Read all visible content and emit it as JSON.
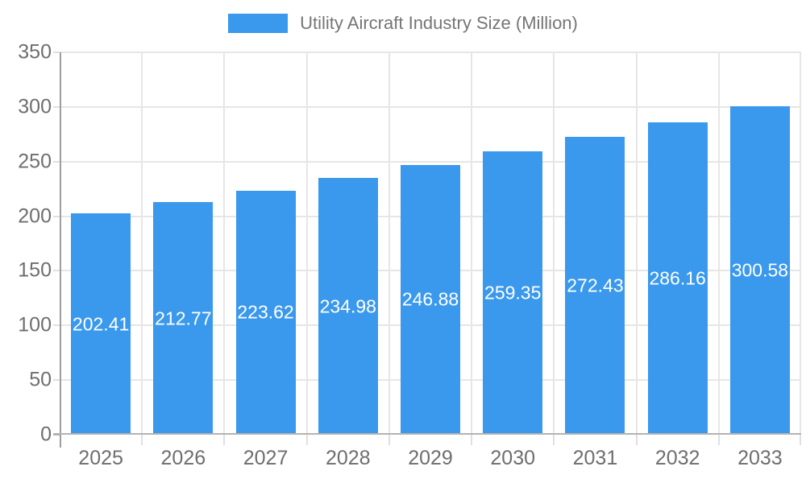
{
  "chart_data": {
    "type": "bar",
    "title": "Utility Aircraft Industry Size (Million)",
    "categories": [
      "2025",
      "2026",
      "2027",
      "2028",
      "2029",
      "2030",
      "2031",
      "2032",
      "2033"
    ],
    "values": [
      202.41,
      212.77,
      223.62,
      234.98,
      246.88,
      259.35,
      272.43,
      286.16,
      300.58
    ],
    "xlabel": "",
    "ylabel": "",
    "ylim": [
      0,
      350
    ],
    "yticks": [
      0,
      50,
      100,
      150,
      200,
      250,
      300,
      350
    ],
    "grid": true,
    "legend_position": "top",
    "value_label_position": "inside-center",
    "value_label_decimals": 2,
    "colors": {
      "bar": "#3A99EC",
      "value_label": "#FFFFFF",
      "legend_text": "#757575",
      "axis_text": "#6E6E6E",
      "gridline": "#E6E6E6",
      "baseline": "#B3B3B3",
      "axis_line": "#9E9E9E",
      "tick": "#E0E0E0",
      "background": "#FFFFFF"
    }
  }
}
